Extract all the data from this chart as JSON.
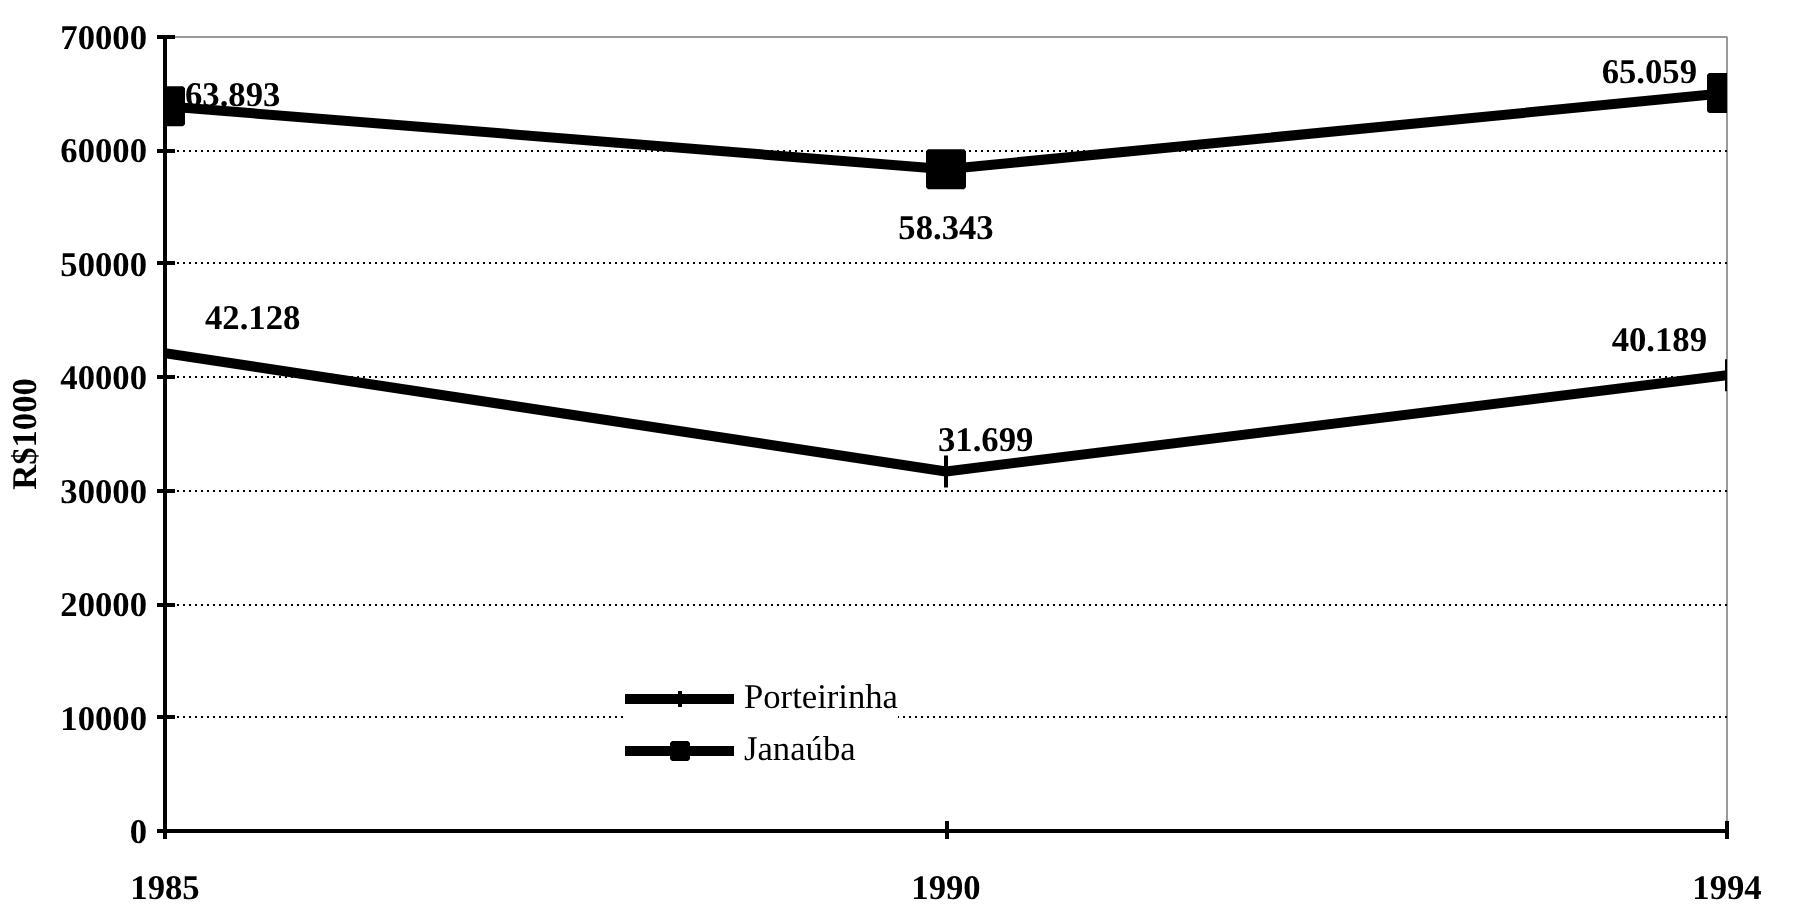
{
  "chart_data": {
    "type": "line",
    "ylabel": "R$1000",
    "categories": [
      "1985",
      "1990",
      "1994"
    ],
    "ylim": [
      0,
      70000
    ],
    "yticks": [
      0,
      10000,
      20000,
      30000,
      40000,
      50000,
      60000,
      70000
    ],
    "grid": "y",
    "legend": "bottom",
    "line_style": "solid",
    "series": [
      {
        "name": "Porteirinha",
        "color": "#000000",
        "marker": "cross",
        "values": [
          42128,
          31699,
          40189
        ],
        "value_labels": [
          "42.128",
          "31.699",
          "40.189"
        ]
      },
      {
        "name": "Janaúba",
        "color": "#000000",
        "marker": "square",
        "values": [
          63893,
          58343,
          65059
        ],
        "value_labels": [
          "63.893",
          "58.343",
          "65.059"
        ]
      }
    ]
  }
}
